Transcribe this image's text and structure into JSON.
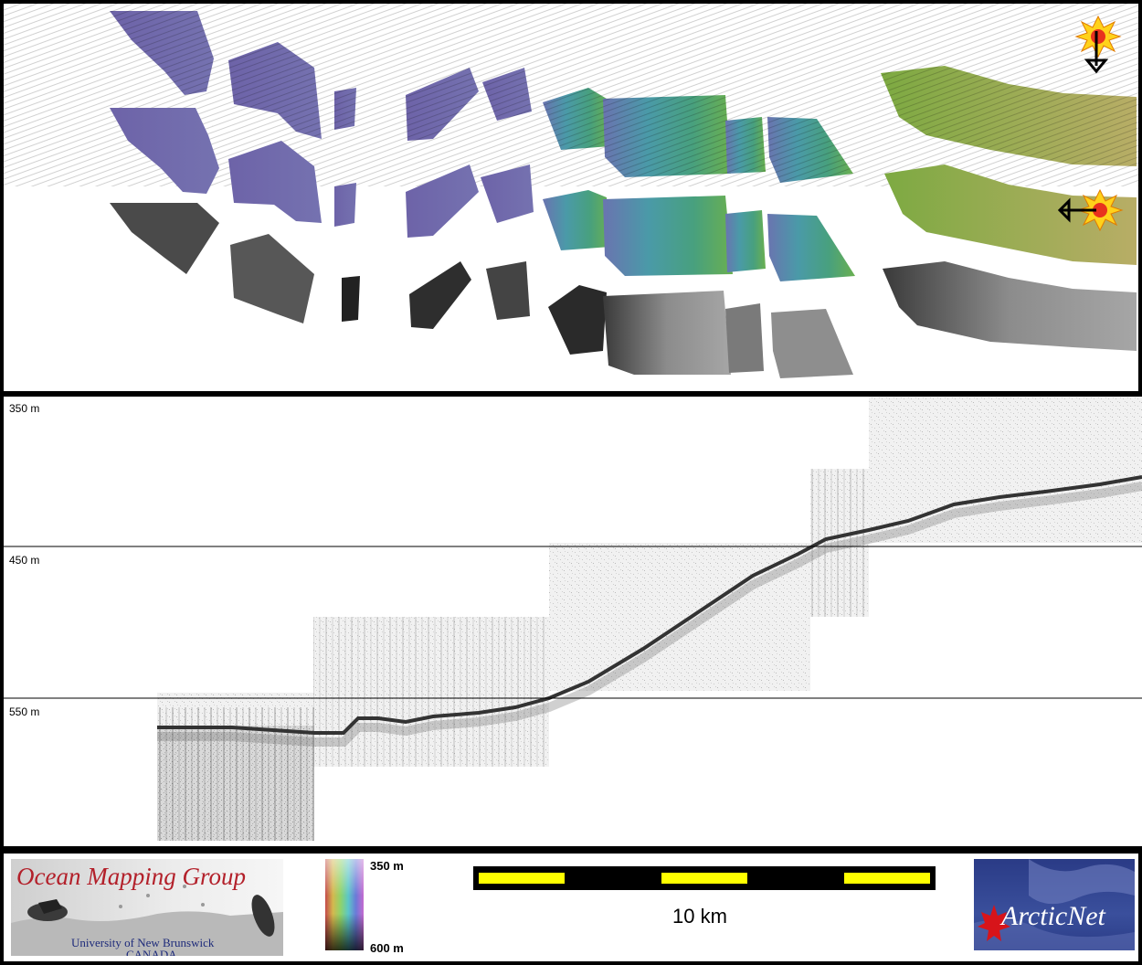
{
  "profile": {
    "depth_labels": [
      "350 m",
      "450 m",
      "550 m"
    ]
  },
  "footer": {
    "omg_logo": {
      "title": "Ocean Mapping Group",
      "university": "University of New Brunswick",
      "country": "CANADA"
    },
    "colorbar": {
      "top_label": "350 m",
      "bottom_label": "600 m"
    },
    "scale_bar": {
      "label": "10 km",
      "colors": {
        "bar": "#000000",
        "segment": "#ffff00"
      }
    },
    "arcticnet_logo": {
      "text": "ArcticNet"
    }
  },
  "map": {
    "illumination_icons": [
      "sun-icon-north",
      "sun-icon-east"
    ],
    "colors": {
      "purple": "#6f6aa6",
      "teal": "#4f9ea0",
      "green": "#5da55a",
      "olive": "#9aa84a",
      "grey": "#8a8a8a"
    }
  }
}
